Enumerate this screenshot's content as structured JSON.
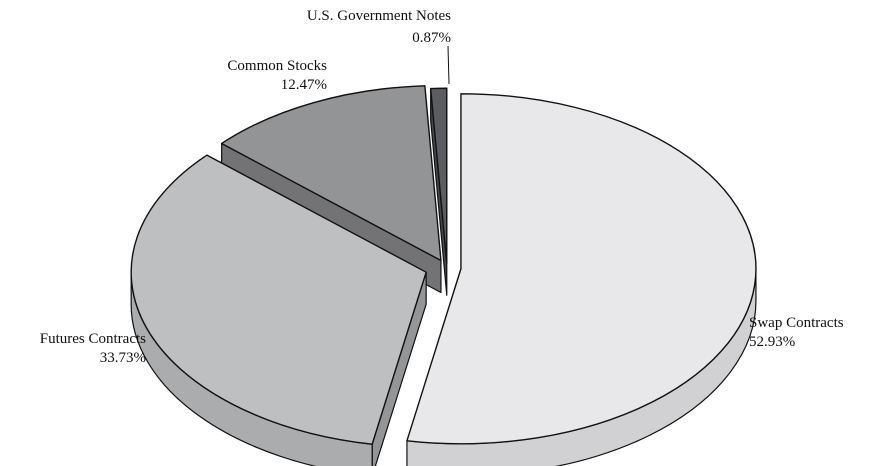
{
  "chart_data": {
    "type": "pie",
    "title": "",
    "style": "3d-exploded",
    "slices": [
      {
        "label": "Swap Contracts",
        "value": 52.93,
        "value_label": "52.93%",
        "color": "#e8e8ea"
      },
      {
        "label": "Futures Contracts",
        "value": 33.73,
        "value_label": "33.73%",
        "color": "#bebfc1"
      },
      {
        "label": "Common Stocks",
        "value": 12.47,
        "value_label": "12.47%",
        "color": "#939496"
      },
      {
        "label": "U.S. Government Notes",
        "value": 0.87,
        "value_label": "0.87%",
        "color": "#5c5d60"
      }
    ]
  }
}
